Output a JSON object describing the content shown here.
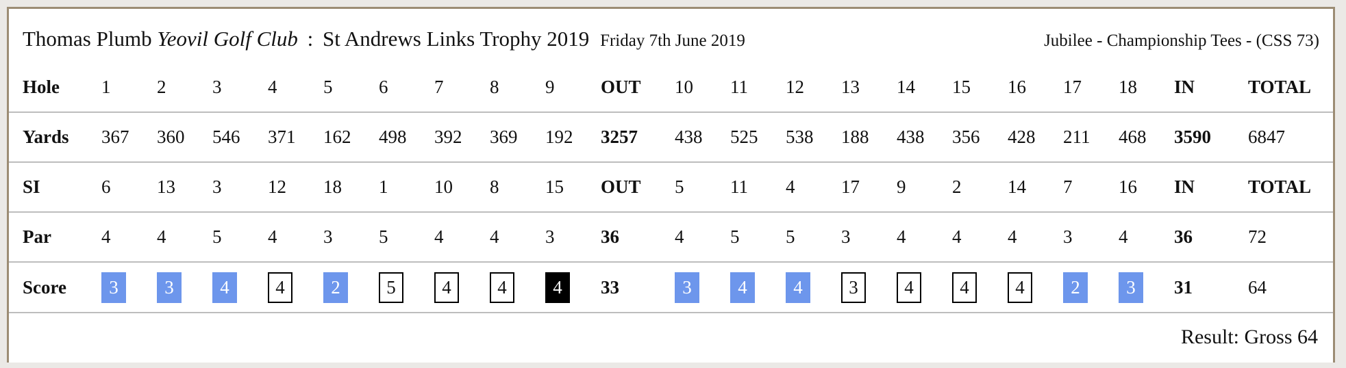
{
  "colors": {
    "page_bg": "#ebe9e6",
    "card_bg": "#ffffff",
    "card_border": "#9c8c74",
    "divider": "#bdbdbd",
    "birdie_bg": "#6d96ec",
    "birdie_text": "#ffffff",
    "par_border": "#000000",
    "bogey_bg": "#000000",
    "bogey_text": "#ffffff",
    "text": "#111111"
  },
  "header": {
    "player": "Thomas Plumb",
    "club": "Yeovil Golf Club",
    "separator": ":",
    "competition": "St Andrews Links Trophy 2019",
    "date": "Friday 7th June 2019",
    "tees": "Jubilee - Championship Tees - (CSS 73)"
  },
  "scorecard": {
    "rows": [
      {
        "id": "hole",
        "label": "Hole",
        "cells": [
          "1",
          "2",
          "3",
          "4",
          "5",
          "6",
          "7",
          "8",
          "9",
          "OUT",
          "10",
          "11",
          "12",
          "13",
          "14",
          "15",
          "16",
          "17",
          "18",
          "IN",
          "TOTAL"
        ]
      },
      {
        "id": "yards",
        "label": "Yards",
        "cells": [
          "367",
          "360",
          "546",
          "371",
          "162",
          "498",
          "392",
          "369",
          "192",
          "3257",
          "438",
          "525",
          "538",
          "188",
          "438",
          "356",
          "428",
          "211",
          "468",
          "3590",
          "6847"
        ]
      },
      {
        "id": "si",
        "label": "SI",
        "cells": [
          "6",
          "13",
          "3",
          "12",
          "18",
          "1",
          "10",
          "8",
          "15",
          "OUT",
          "5",
          "11",
          "4",
          "17",
          "9",
          "2",
          "14",
          "7",
          "16",
          "IN",
          "TOTAL"
        ]
      },
      {
        "id": "par",
        "label": "Par",
        "cells": [
          "4",
          "4",
          "5",
          "4",
          "3",
          "5",
          "4",
          "4",
          "3",
          "36",
          "4",
          "5",
          "5",
          "3",
          "4",
          "4",
          "4",
          "3",
          "4",
          "36",
          "72"
        ]
      },
      {
        "id": "score",
        "label": "Score",
        "cells": [
          {
            "value": "3",
            "style": "birdie"
          },
          {
            "value": "3",
            "style": "birdie"
          },
          {
            "value": "4",
            "style": "birdie"
          },
          {
            "value": "4",
            "style": "par"
          },
          {
            "value": "2",
            "style": "birdie"
          },
          {
            "value": "5",
            "style": "par"
          },
          {
            "value": "4",
            "style": "par"
          },
          {
            "value": "4",
            "style": "par"
          },
          {
            "value": "4",
            "style": "bogey"
          },
          {
            "value": "33",
            "style": "sum"
          },
          {
            "value": "3",
            "style": "birdie"
          },
          {
            "value": "4",
            "style": "birdie"
          },
          {
            "value": "4",
            "style": "birdie"
          },
          {
            "value": "3",
            "style": "par"
          },
          {
            "value": "4",
            "style": "par"
          },
          {
            "value": "4",
            "style": "par"
          },
          {
            "value": "4",
            "style": "par"
          },
          {
            "value": "2",
            "style": "birdie"
          },
          {
            "value": "3",
            "style": "birdie"
          },
          {
            "value": "31",
            "style": "sum"
          },
          {
            "value": "64",
            "style": "plain"
          }
        ]
      }
    ]
  },
  "result": {
    "text": "Result: Gross 64"
  }
}
